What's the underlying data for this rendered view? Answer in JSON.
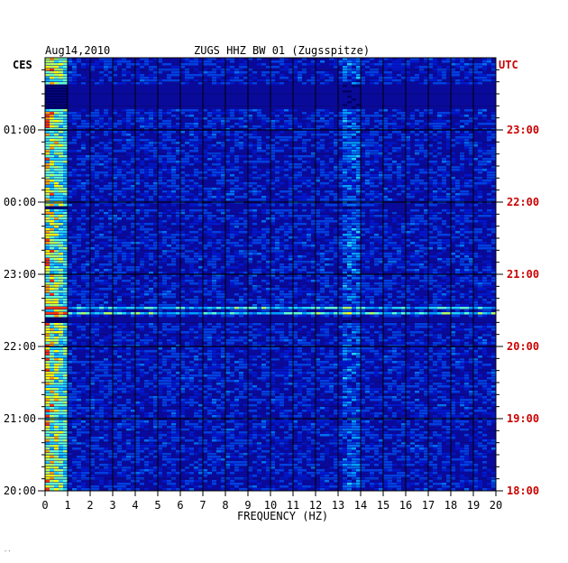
{
  "header": {
    "date": "Aug14,2010",
    "station": "ZUGS HHZ BW 01 (Zugsspitze)",
    "left_tz": "CES",
    "right_tz": "UTC"
  },
  "footer_mark": "′′",
  "colors": {
    "background_low": "#0a0a9a",
    "band_dark": "#000055",
    "grid": "#000000",
    "utc_label": "#cc0000",
    "low_freq_hot": "#ffff00"
  },
  "chart_data": {
    "type": "heatmap",
    "title": "ZUGS HHZ BW 01 (Zugsspitze)",
    "subtitle": "Aug14,2010",
    "xlabel": "FREQUENCY (HZ)",
    "ylabel_left": "CES",
    "ylabel_right": "UTC",
    "xlim": [
      0,
      20
    ],
    "x_ticks": [
      "0",
      "1",
      "2",
      "3",
      "4",
      "5",
      "6",
      "7",
      "8",
      "9",
      "10",
      "11",
      "12",
      "13",
      "14",
      "15",
      "16",
      "17",
      "18",
      "19",
      "20"
    ],
    "y_ticks_left": [
      "01:00",
      "00:00",
      "23:00",
      "22:00",
      "21:00",
      "20:00"
    ],
    "y_ticks_right": [
      "23:00",
      "22:00",
      "21:00",
      "20:00",
      "19:00",
      "18:00"
    ],
    "time_span_hours": 6,
    "notable_bands": [
      {
        "freq_range_hz": [
          0,
          1
        ],
        "description": "strong low-frequency energy"
      },
      {
        "freq_range_hz": [
          13,
          14
        ],
        "description": "persistent spectral line"
      }
    ],
    "grid": true
  }
}
